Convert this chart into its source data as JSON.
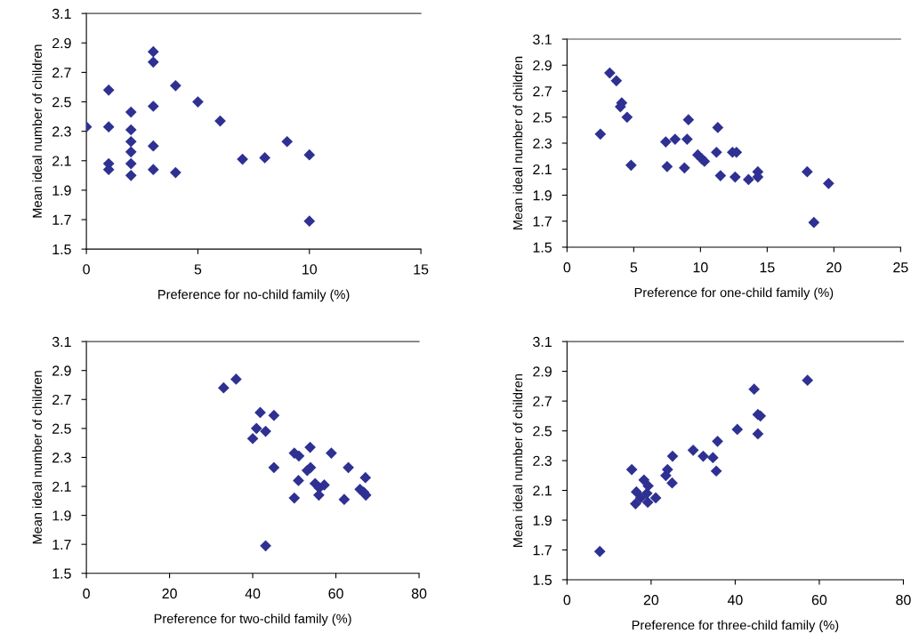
{
  "chart_data": [
    {
      "type": "scatter",
      "xlabel": "Preference for no-child family (%)",
      "ylabel": "Mean ideal number of children",
      "xlim": [
        0,
        15
      ],
      "xticks": [
        0,
        5,
        10,
        15
      ],
      "ylim": [
        1.5,
        3.1
      ],
      "yticks": [
        1.5,
        1.7,
        1.9,
        2.1,
        2.3,
        2.5,
        2.7,
        2.9,
        3.1
      ],
      "marker": "diamond",
      "grid": false,
      "series": [
        {
          "color": "#2e3192",
          "x": [
            0,
            1,
            1,
            1,
            1,
            2,
            2,
            2,
            2,
            2,
            2,
            3,
            3,
            3,
            3,
            3,
            4,
            4,
            5,
            6,
            7,
            8,
            9,
            10,
            10
          ],
          "values": [
            2.33,
            2.58,
            2.33,
            2.08,
            2.04,
            2.43,
            2.31,
            2.23,
            2.16,
            2.08,
            2.0,
            2.84,
            2.77,
            2.47,
            2.2,
            2.04,
            2.61,
            2.02,
            2.5,
            2.37,
            2.11,
            2.12,
            2.23,
            2.14,
            1.69
          ]
        }
      ]
    },
    {
      "type": "scatter",
      "xlabel": "Preference for one-child family (%)",
      "ylabel": "Mean ideal number of children",
      "xlim": [
        0,
        25
      ],
      "xticks": [
        0,
        5,
        10,
        15,
        20,
        25
      ],
      "ylim": [
        1.5,
        3.1
      ],
      "yticks": [
        1.5,
        1.7,
        1.9,
        2.1,
        2.3,
        2.5,
        2.7,
        2.9,
        3.1
      ],
      "marker": "diamond",
      "grid": false,
      "series": [
        {
          "color": "#2e3192",
          "x": [
            2.5,
            3.2,
            3.7,
            4.1,
            4.0,
            4.5,
            4.8,
            7.4,
            7.5,
            8.1,
            8.8,
            9.0,
            9.1,
            9.8,
            10.1,
            10.3,
            11.2,
            11.3,
            11.5,
            12.4,
            12.7,
            12.6,
            13.6,
            14.3,
            14.3,
            18.0,
            18.5,
            19.6
          ],
          "values": [
            2.37,
            2.84,
            2.78,
            2.61,
            2.58,
            2.5,
            2.13,
            2.31,
            2.12,
            2.33,
            2.11,
            2.33,
            2.48,
            2.21,
            2.18,
            2.16,
            2.23,
            2.42,
            2.05,
            2.23,
            2.23,
            2.04,
            2.02,
            2.08,
            2.04,
            2.08,
            1.69,
            1.99
          ]
        }
      ]
    },
    {
      "type": "scatter",
      "xlabel": "Preference for two-child family (%)",
      "ylabel": "Mean ideal number of children",
      "xlim": [
        0,
        80
      ],
      "xticks": [
        0,
        20,
        40,
        60,
        80
      ],
      "ylim": [
        1.5,
        3.1
      ],
      "yticks": [
        1.5,
        1.7,
        1.9,
        2.1,
        2.3,
        2.5,
        2.7,
        2.9,
        3.1
      ],
      "marker": "diamond",
      "grid": false,
      "series": [
        {
          "color": "#2e3192",
          "x": [
            33.0,
            36.0,
            41.8,
            45.1,
            40.9,
            43.1,
            40.0,
            53.8,
            50.0,
            51.1,
            58.9,
            45.1,
            53.1,
            53.9,
            63.0,
            67.1,
            51.0,
            55.0,
            57.2,
            56.0,
            55.9,
            50.0,
            62.0,
            65.8,
            66.7,
            67.2,
            43.1
          ],
          "values": [
            2.78,
            2.84,
            2.61,
            2.59,
            2.5,
            2.48,
            2.43,
            2.37,
            2.33,
            2.31,
            2.33,
            2.23,
            2.21,
            2.23,
            2.23,
            2.16,
            2.14,
            2.12,
            2.11,
            2.09,
            2.04,
            2.02,
            2.01,
            2.08,
            2.06,
            2.04,
            1.69
          ]
        }
      ]
    },
    {
      "type": "scatter",
      "xlabel": "Preference for three-child family (%)",
      "ylabel": "Mean ideal number of children",
      "xlim": [
        0,
        80
      ],
      "xticks": [
        0,
        20,
        40,
        60,
        80
      ],
      "ylim": [
        1.5,
        3.1
      ],
      "yticks": [
        1.5,
        1.7,
        1.9,
        2.1,
        2.3,
        2.5,
        2.7,
        2.9,
        3.1
      ],
      "marker": "diamond",
      "grid": false,
      "series": [
        {
          "color": "#2e3192",
          "x": [
            7.8,
            15.4,
            16.3,
            16.5,
            17.5,
            18.3,
            19.3,
            19.0,
            19.2,
            21.1,
            23.5,
            23.9,
            25.1,
            25.0,
            30.0,
            32.4,
            34.7,
            35.5,
            35.8,
            40.5,
            44.5,
            45.4,
            45.4,
            46.0,
            57.2
          ],
          "values": [
            1.69,
            2.24,
            2.01,
            2.09,
            2.05,
            2.17,
            2.13,
            2.08,
            2.02,
            2.05,
            2.2,
            2.24,
            2.33,
            2.15,
            2.37,
            2.33,
            2.32,
            2.23,
            2.43,
            2.51,
            2.78,
            2.48,
            2.61,
            2.6,
            2.84
          ]
        }
      ]
    }
  ]
}
